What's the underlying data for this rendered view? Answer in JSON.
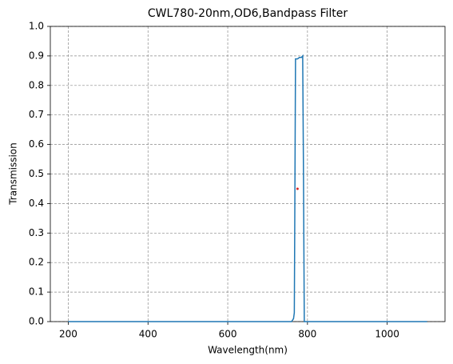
{
  "chart_data": {
    "type": "line",
    "title": "CWL780-20nm,OD6,Bandpass Filter",
    "x_label": "Wavelength(nm)",
    "y_label": "Transmission",
    "series": [
      {
        "color": "#1f77b4",
        "style": "line",
        "x": [
          200,
          760,
          765,
          767,
          768,
          770,
          775,
          780,
          785,
          788,
          790,
          792,
          800,
          1100
        ],
        "values": [
          0,
          0,
          0.01,
          0.03,
          0.3,
          0.89,
          0.89,
          0.895,
          0.895,
          0.9,
          0.5,
          0,
          0,
          0
        ]
      },
      {
        "color": "#d62728",
        "style": "point",
        "x": [
          775
        ],
        "values": [
          0.45
        ]
      }
    ],
    "xlim": [
      155,
      1145
    ],
    "xticks": [
      200,
      400,
      600,
      800,
      1000
    ],
    "ylim": [
      0,
      1
    ],
    "yticks": [
      {
        "value": 0,
        "label": "0.0"
      },
      0.1,
      0.2,
      0.3,
      0.4,
      0.5,
      0.6,
      0.7,
      0.8,
      0.9,
      {
        "value": 1,
        "label": "1.0"
      }
    ],
    "grid": true
  }
}
